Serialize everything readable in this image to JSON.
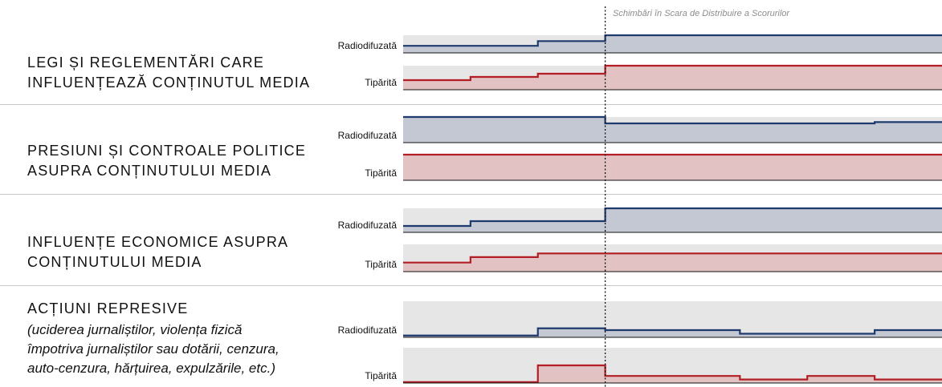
{
  "annotation": "Schimbări în Scara de Distribuire a Scorurilor",
  "colors": {
    "radio_line": "#1f3a6e",
    "radio_fill": "#c3c8d3",
    "print_line": "#b21e24",
    "print_fill": "#e2c2c2",
    "background_band": "#e6e6e6",
    "separator": "#c8c8c8",
    "annotation": "#8c8c8c"
  },
  "categories": [
    {
      "title": "LEGI ȘI REGLEMENTĂRI CARE INFLUENȚEAZĂ CONȚINUTUL MEDIA",
      "title_lines": [
        "LEGI ȘI REGLEMENTĂRI CARE",
        "INFLUENȚEAZĂ CONȚINUTUL MEDIA"
      ],
      "subtitle_lines": []
    },
    {
      "title": "PRESIUNI ȘI CONTROALE POLITICE ASUPRA CONȚINUTULUI MEDIA",
      "title_lines": [
        "PRESIUNI ȘI CONTROALE POLITICE",
        "ASUPRA CONȚINUTULUI MEDIA"
      ],
      "subtitle_lines": []
    },
    {
      "title": "INFLUENȚE ECONOMICE ASUPRA CONȚINUTULUI MEDIA",
      "title_lines": [
        "INFLUENȚE ECONOMICE ASUPRA",
        "CONȚINUTULUI MEDIA"
      ],
      "subtitle_lines": []
    },
    {
      "title": "ACȚIUNI REPRESIVE",
      "title_lines": [
        "ACȚIUNI REPRESIVE"
      ],
      "subtitle_lines": [
        "(uciderea jurnaliștilor, violența fizică",
        "împotriva jurnaliștilor sau dotării, cenzura,",
        "auto-cenzura, hărțuirea, expulzările, etc.)"
      ]
    }
  ],
  "chart_data": {
    "type": "area",
    "title": "",
    "periods": 8,
    "scale_change_after_period": 3,
    "series_labels": [
      "Radiodifuzată",
      "Tipărită"
    ],
    "panels": [
      {
        "category": "LEGI ȘI REGLEMENTĂRI CARE INFLUENȚEAZĂ CONȚINUTUL MEDIA",
        "series": [
          {
            "name": "Radiodifuzată",
            "scale_before": 30,
            "scale_after": 30,
            "values": [
              12,
              12,
              20,
              30,
              30,
              30,
              30,
              30
            ]
          },
          {
            "name": "Tipărită",
            "scale_before": 30,
            "scale_after": 30,
            "values": [
              12,
              16,
              20,
              30,
              30,
              30,
              30,
              30
            ]
          }
        ]
      },
      {
        "category": "PRESIUNI ȘI CONTROALE POLITICE ASUPRA CONȚINUTULUI MEDIA",
        "series": [
          {
            "name": "Radiodifuzată",
            "scale_before": 30,
            "scale_after": 40,
            "values": [
              30,
              30,
              30,
              30,
              30,
              30,
              30,
              32
            ]
          },
          {
            "name": "Tipărită",
            "scale_before": 30,
            "scale_after": 30,
            "values": [
              30,
              30,
              30,
              30,
              30,
              30,
              30,
              30
            ]
          }
        ]
      },
      {
        "category": "INFLUENȚE ECONOMICE ASUPRA CONȚINUTULUI MEDIA",
        "series": [
          {
            "name": "Radiodifuzată",
            "scale_before": 30,
            "scale_after": 20,
            "values": [
              8,
              14,
              14,
              20,
              20,
              20,
              20,
              20
            ]
          },
          {
            "name": "Tipărită",
            "scale_before": 30,
            "scale_after": 30,
            "values": [
              10,
              16,
              20,
              20,
              20,
              20,
              20,
              20
            ]
          }
        ]
      },
      {
        "category": "ACȚIUNI REPRESIVE",
        "series": [
          {
            "name": "Radiodifuzată",
            "scale_before": 20,
            "scale_after": 5,
            "values": [
              1,
              1,
              5,
              1,
              1,
              0.5,
              0.5,
              1
            ]
          },
          {
            "name": "Tipărită",
            "scale_before": 20,
            "scale_after": 5,
            "values": [
              0.5,
              0.5,
              10,
              1,
              1,
              0.5,
              1,
              0.5
            ]
          }
        ]
      }
    ]
  }
}
